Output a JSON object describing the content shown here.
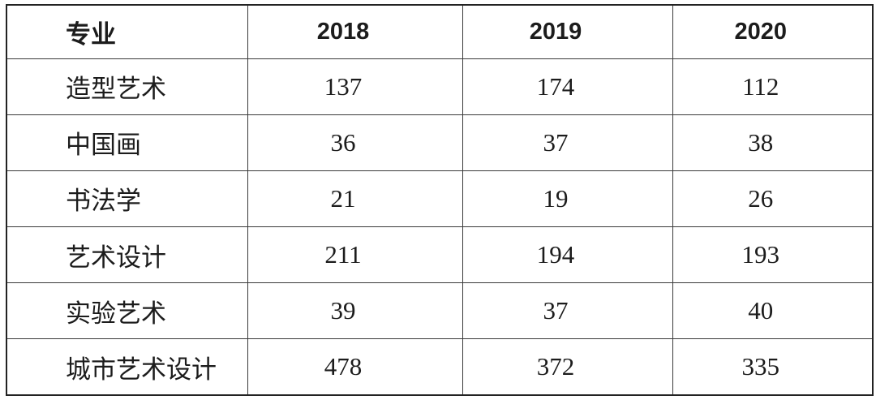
{
  "table": {
    "columns": [
      {
        "label": "专业"
      },
      {
        "label": "2018"
      },
      {
        "label": "2019"
      },
      {
        "label": "2020"
      }
    ],
    "rows": [
      {
        "major": "造型艺术",
        "values": [
          "137",
          "174",
          "112"
        ]
      },
      {
        "major": "中国画",
        "values": [
          "36",
          "37",
          "38"
        ]
      },
      {
        "major": "书法学",
        "values": [
          "21",
          "19",
          "26"
        ]
      },
      {
        "major": "艺术设计",
        "values": [
          "211",
          "194",
          "193"
        ]
      },
      {
        "major": "实验艺术",
        "values": [
          "39",
          "37",
          "40"
        ]
      },
      {
        "major": "城市艺术设计",
        "values": [
          "478",
          "372",
          "335"
        ]
      }
    ]
  },
  "chart_data": {
    "type": "table",
    "title": "",
    "columns": [
      "专业",
      "2018",
      "2019",
      "2020"
    ],
    "rows": [
      [
        "造型艺术",
        137,
        174,
        112
      ],
      [
        "中国画",
        36,
        37,
        38
      ],
      [
        "书法学",
        21,
        19,
        26
      ],
      [
        "艺术设计",
        211,
        194,
        193
      ],
      [
        "实验艺术",
        39,
        37,
        40
      ],
      [
        "城市艺术设计",
        478,
        372,
        335
      ]
    ],
    "layout": {
      "grid": "full-borders",
      "header_style": "bold",
      "background": "#ffffff",
      "border_color": "#2b2b2b",
      "text_color": "#1c1c1c"
    }
  }
}
